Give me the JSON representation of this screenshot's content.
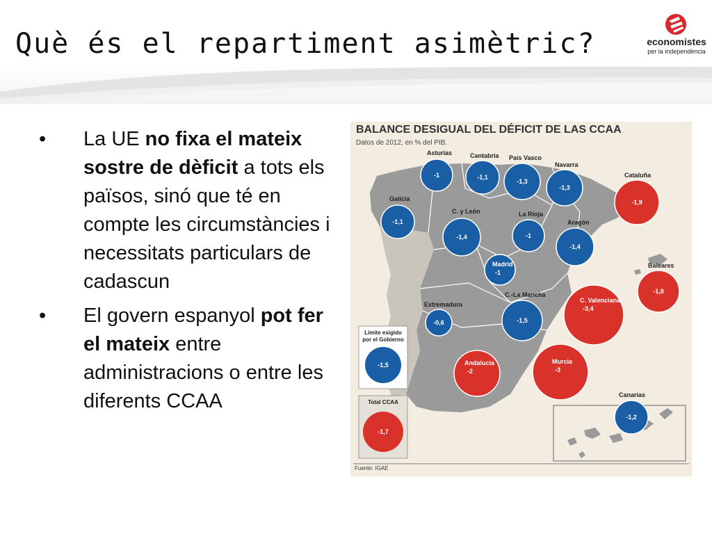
{
  "slide": {
    "title": "Què és el repartiment asimètric?",
    "logo": {
      "line1": "economistes",
      "line2": "per la independència"
    },
    "bullets": [
      {
        "parts": [
          {
            "text": "La UE ",
            "bold": false
          },
          {
            "text": "no fixa el mateix sostre de dèficit",
            "bold": true
          },
          {
            "text": " a tots els països, sinó que té en compte les circumstàncies i necessitats particulars de cadascun",
            "bold": false
          }
        ]
      },
      {
        "parts": [
          {
            "text": "El govern espanyol ",
            "bold": false
          },
          {
            "text": "pot fer el mateix",
            "bold": true
          },
          {
            "text": " entre administracions o entre les diferents CCAA",
            "bold": false
          }
        ]
      }
    ]
  },
  "map": {
    "title": "BALANCE DESIGUAL DEL DÉFICIT DE LAS CCAA",
    "subtitle": "Datos de 2012, en % del PIB.",
    "source": "Fuente: IGAE",
    "colors": {
      "below_limit": "#1a5fa5",
      "above_limit": "#d9322a",
      "land": "#9a9a9a",
      "background": "#f3ece1",
      "border": "#ffffff"
    },
    "regions": [
      {
        "name": "Asturias",
        "value": "-1",
        "status": "below"
      },
      {
        "name": "Cantabria",
        "value": "-1,1",
        "status": "below"
      },
      {
        "name": "País Vasco",
        "value": "-1,3",
        "status": "below"
      },
      {
        "name": "Navarra",
        "value": "-1,3",
        "status": "below"
      },
      {
        "name": "Cataluña",
        "value": "-1,9",
        "status": "above"
      },
      {
        "name": "Galicia",
        "value": "-1,1",
        "status": "below"
      },
      {
        "name": "C. y León",
        "value": "-1,4",
        "status": "below"
      },
      {
        "name": "La Rioja",
        "value": "-1",
        "status": "below"
      },
      {
        "name": "Aragón",
        "value": "-1,4",
        "status": "below"
      },
      {
        "name": "Madrid",
        "value": "-1",
        "status": "below"
      },
      {
        "name": "Baleares",
        "value": "-1,8",
        "status": "above"
      },
      {
        "name": "Extremadura",
        "value": "-0,6",
        "status": "below"
      },
      {
        "name": "C.-La Mancha",
        "value": "-1,5",
        "status": "below"
      },
      {
        "name": "C. Valenciana",
        "value": "-3,4",
        "status": "above"
      },
      {
        "name": "Andalucía",
        "value": "-2",
        "status": "above"
      },
      {
        "name": "Murcia",
        "value": "-3",
        "status": "above"
      },
      {
        "name": "Canarias",
        "value": "-1,2",
        "status": "below"
      }
    ],
    "legend": [
      {
        "label_lines": [
          "Límite exigido",
          "por el Gobierno"
        ],
        "value": "-1,5",
        "status": "below"
      },
      {
        "label_lines": [
          "Total CCAA"
        ],
        "value": "-1,7",
        "status": "above"
      }
    ]
  }
}
